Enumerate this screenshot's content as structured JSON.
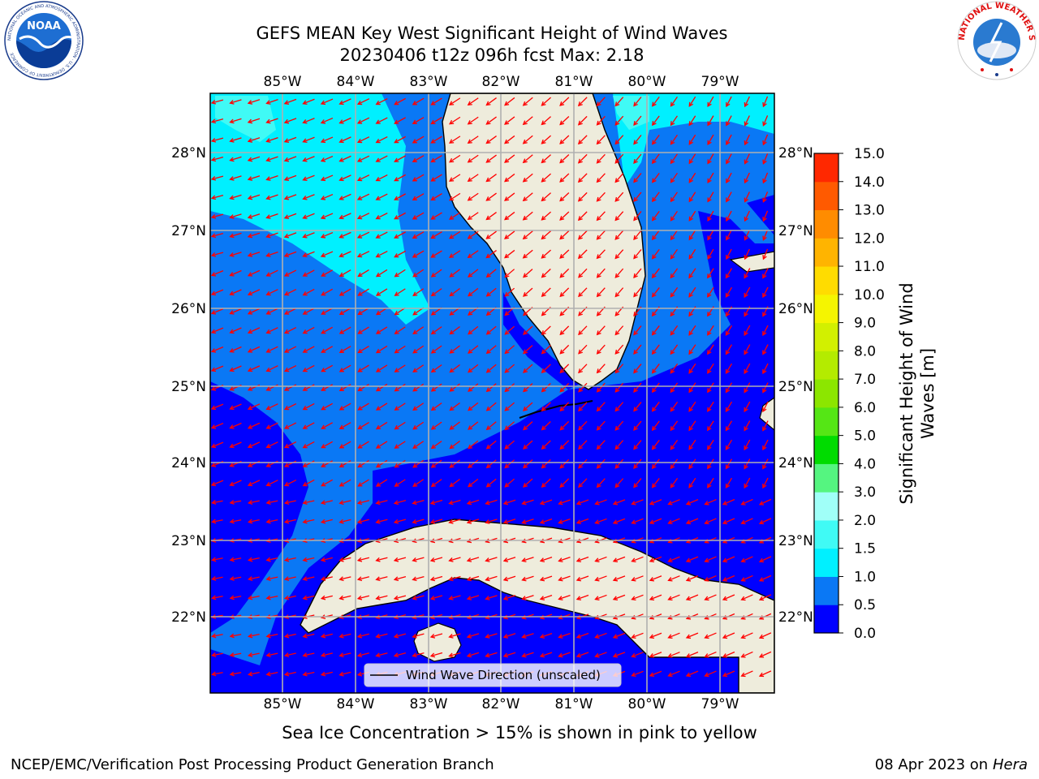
{
  "header": {
    "title_line1": "GEFS MEAN Key West Significant Height of Wind Waves",
    "title_line2": "20230406 t12z 096h fcst   Max: 2.18"
  },
  "logos": {
    "noaa_text": "NOAA",
    "noaa_ring": "NATIONAL OCEANIC AND ATMOSPHERIC ADMINISTRATION · U.S. DEPARTMENT OF COMMERCE",
    "nws_ring": "NATIONAL WEATHER SERVICE"
  },
  "axes": {
    "lon_labels": [
      "85°W",
      "84°W",
      "83°W",
      "82°W",
      "81°W",
      "80°W",
      "79°W"
    ],
    "lat_labels": [
      "28°N",
      "27°N",
      "26°N",
      "25°N",
      "24°N",
      "23°N",
      "22°N"
    ]
  },
  "legend": {
    "label": "Wind Wave Direction (unscaled)"
  },
  "colorbar": {
    "label_line1": "Significant Height of Wind",
    "label_line2": "Waves [m]",
    "ticks": [
      "0.0",
      "0.5",
      "1.0",
      "1.5",
      "2.0",
      "3.0",
      "4.0",
      "5.0",
      "6.0",
      "7.0",
      "8.0",
      "9.0",
      "10.0",
      "11.0",
      "12.0",
      "13.0",
      "14.0",
      "15.0"
    ],
    "colors": [
      "#0000ff",
      "#0a78f5",
      "#00f0ff",
      "#40faf5",
      "#a0fff8",
      "#55f580",
      "#00dc00",
      "#55e615",
      "#8ce600",
      "#b4eb00",
      "#d2f000",
      "#f5f500",
      "#ffdc00",
      "#ffb400",
      "#ff8c00",
      "#ff5a00",
      "#ff2800",
      "#ff0000"
    ]
  },
  "caption": "Sea Ice Concentration > 15% is shown in pink to yellow",
  "footer": {
    "left": "NCEP/EMC/Verification Post Processing Product Generation Branch",
    "right_date": "08 Apr 2023 on ",
    "right_host": "Hera"
  }
}
